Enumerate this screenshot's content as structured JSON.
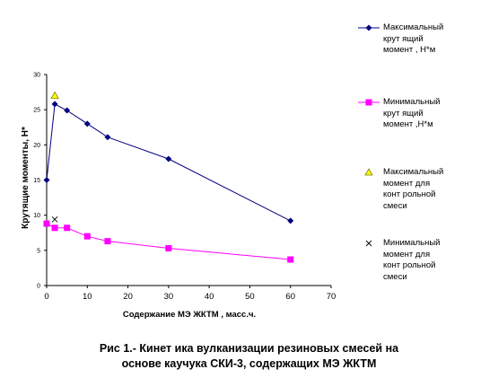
{
  "chart_data": {
    "type": "line",
    "xlabel": "Содержание МЭ ЖКТМ , масс.ч.",
    "ylabel": "Крутящие моменты, Н*",
    "xlim": [
      0,
      70
    ],
    "ylim": [
      0,
      30
    ],
    "xticks": [
      0,
      10,
      20,
      30,
      40,
      50,
      60,
      70
    ],
    "yticks": [
      0,
      5,
      10,
      15,
      20,
      25,
      30
    ],
    "grid": false,
    "legend_position": "right",
    "series": [
      {
        "name": "Максимальный крут ящий момент , Н*м",
        "lines": [
          "Максимальный",
          "крут ящий",
          "момент , Н*м"
        ],
        "color": "#000080",
        "marker": "diamond",
        "x": [
          0,
          2,
          5,
          10,
          15,
          30,
          60
        ],
        "y": [
          15.0,
          25.8,
          24.9,
          23.0,
          21.1,
          18.0,
          9.2
        ]
      },
      {
        "name": "Минимальный крут ящий момент ,Н*м",
        "lines": [
          "Минимальный",
          "крут ящий",
          "момент ,Н*м"
        ],
        "color": "#ff00ff",
        "marker": "square",
        "x": [
          0,
          2,
          5,
          10,
          15,
          30,
          60
        ],
        "y": [
          8.8,
          8.2,
          8.2,
          7.0,
          6.3,
          5.3,
          3.7
        ]
      },
      {
        "name": "Максимальный момент для конт рольной смеси",
        "lines": [
          "Максимальный",
          "момент  для",
          "конт рольной",
          "смеси"
        ],
        "color": "#808000",
        "fill": "#ffff00",
        "marker": "triangle",
        "x": [
          2
        ],
        "y": [
          27.0
        ]
      },
      {
        "name": "Минимальный момент для конт рольной смеси",
        "lines": [
          "Минимальный",
          "момент  для",
          "конт рольной",
          "смеси"
        ],
        "color": "#000000",
        "marker": "x",
        "x": [
          2
        ],
        "y": [
          9.4
        ]
      }
    ]
  },
  "caption": {
    "line1": "Рис 1.- Кинет ика вулканизации резиновых смесей на",
    "line2": "основе каучука СКИ-3, содержащих МЭ ЖКТМ"
  }
}
